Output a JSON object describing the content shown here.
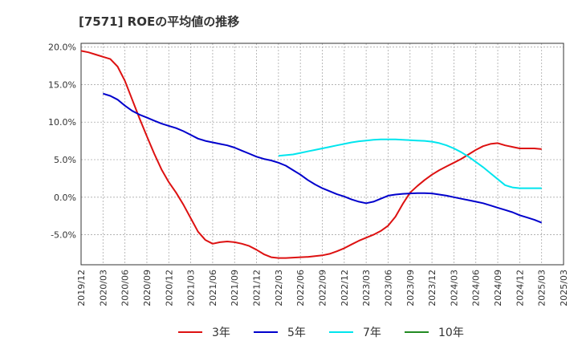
{
  "chart_data": {
    "type": "line",
    "title": "[7571]  ROEの平均値の推移",
    "xlabel": "",
    "ylabel": "",
    "ylim": [
      -9.0,
      20.5
    ],
    "yticks": [
      20.0,
      15.0,
      10.0,
      5.0,
      0.0,
      -5.0
    ],
    "ytick_labels": [
      "20.0%",
      "15.0%",
      "10.0%",
      "5.0%",
      "0.0%",
      "-5.0%"
    ],
    "x_range": [
      0,
      66
    ],
    "xtick_positions": [
      0,
      3,
      6,
      9,
      12,
      15,
      18,
      21,
      24,
      27,
      30,
      33,
      36,
      39,
      42,
      45,
      48,
      51,
      54,
      57,
      60,
      63,
      66
    ],
    "xtick_labels": [
      "2019/12",
      "2020/03",
      "2020/06",
      "2020/09",
      "2020/12",
      "2021/03",
      "2021/06",
      "2021/09",
      "2021/12",
      "2022/03",
      "2022/06",
      "2022/09",
      "2022/12",
      "2023/03",
      "2023/06",
      "2023/09",
      "2023/12",
      "2024/03",
      "2024/06",
      "2024/09",
      "2024/12",
      "2025/03",
      "2025/03"
    ],
    "grid": true,
    "legend_position": "bottom",
    "series": [
      {
        "name": "3年",
        "color": "#dd1111",
        "x": [
          0,
          1,
          2,
          3,
          4,
          5,
          6,
          7,
          8,
          9,
          10,
          11,
          12,
          13,
          14,
          15,
          16,
          17,
          18,
          19,
          20,
          21,
          22,
          23,
          24,
          25,
          26,
          27,
          28,
          29,
          30,
          31,
          32,
          33,
          34,
          35,
          36,
          37,
          38,
          39,
          40,
          41,
          42,
          43,
          44,
          45,
          46,
          47,
          48,
          49,
          50,
          51,
          52,
          53,
          54,
          55,
          56,
          57,
          58,
          59,
          60,
          61,
          62,
          63
        ],
        "values": [
          19.5,
          19.3,
          19.0,
          18.7,
          18.4,
          17.4,
          15.5,
          13.0,
          10.5,
          8.1,
          5.8,
          3.7,
          2.0,
          0.6,
          -1.0,
          -2.8,
          -4.6,
          -5.7,
          -6.2,
          -6.0,
          -5.9,
          -6.0,
          -6.2,
          -6.5,
          -7.0,
          -7.6,
          -8.0,
          -8.1,
          -8.1,
          -8.05,
          -8.0,
          -7.95,
          -7.85,
          -7.75,
          -7.55,
          -7.2,
          -6.8,
          -6.3,
          -5.8,
          -5.4,
          -5.0,
          -4.5,
          -3.8,
          -2.6,
          -0.9,
          0.6,
          1.5,
          2.3,
          3.0,
          3.6,
          4.1,
          4.6,
          5.1,
          5.7,
          6.3,
          6.8,
          7.1,
          7.2,
          6.9,
          6.7,
          6.5,
          6.5,
          6.5,
          6.4
        ]
      },
      {
        "name": "5年",
        "color": "#0000cc",
        "x": [
          3,
          4,
          5,
          6,
          7,
          8,
          9,
          10,
          11,
          12,
          13,
          14,
          15,
          16,
          17,
          18,
          19,
          20,
          21,
          22,
          23,
          24,
          25,
          26,
          27,
          28,
          29,
          30,
          31,
          32,
          33,
          34,
          35,
          36,
          37,
          38,
          39,
          40,
          41,
          42,
          43,
          44,
          45,
          46,
          47,
          48,
          49,
          50,
          51,
          52,
          53,
          54,
          55,
          56,
          57,
          58,
          59,
          60,
          61,
          62,
          63
        ],
        "values": [
          13.8,
          13.5,
          13.0,
          12.2,
          11.5,
          11.0,
          10.6,
          10.2,
          9.8,
          9.5,
          9.2,
          8.8,
          8.3,
          7.8,
          7.5,
          7.3,
          7.1,
          6.9,
          6.6,
          6.2,
          5.8,
          5.4,
          5.1,
          4.9,
          4.6,
          4.2,
          3.6,
          3.0,
          2.3,
          1.7,
          1.2,
          0.8,
          0.4,
          0.1,
          -0.3,
          -0.6,
          -0.8,
          -0.6,
          -0.2,
          0.2,
          0.35,
          0.45,
          0.5,
          0.55,
          0.55,
          0.5,
          0.35,
          0.2,
          0.0,
          -0.2,
          -0.4,
          -0.6,
          -0.8,
          -1.1,
          -1.4,
          -1.7,
          -2.0,
          -2.4,
          -2.7,
          -3.0,
          -3.4
        ]
      },
      {
        "name": "7年",
        "color": "#00e5ee",
        "x": [
          27,
          28,
          29,
          30,
          31,
          32,
          33,
          34,
          35,
          36,
          37,
          38,
          39,
          40,
          41,
          42,
          43,
          44,
          45,
          46,
          47,
          48,
          49,
          50,
          51,
          52,
          53,
          54,
          55,
          56,
          57,
          58,
          59,
          60,
          61,
          62,
          63
        ],
        "values": [
          5.5,
          5.6,
          5.7,
          5.9,
          6.1,
          6.3,
          6.5,
          6.7,
          6.9,
          7.1,
          7.3,
          7.45,
          7.55,
          7.65,
          7.7,
          7.7,
          7.7,
          7.65,
          7.6,
          7.55,
          7.5,
          7.4,
          7.2,
          6.9,
          6.5,
          6.0,
          5.4,
          4.7,
          4.0,
          3.2,
          2.4,
          1.6,
          1.3,
          1.2,
          1.2,
          1.2,
          1.2
        ]
      },
      {
        "name": "10年",
        "color": "#228b22",
        "x": [],
        "values": []
      }
    ]
  }
}
